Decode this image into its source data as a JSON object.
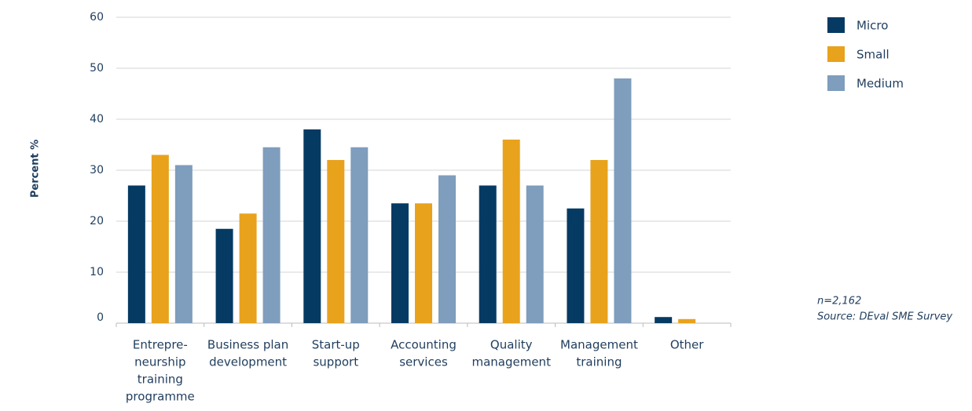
{
  "chart_data": {
    "type": "bar",
    "y_label": "Percent %",
    "categories": [
      [
        "Entrepre-",
        "neurship",
        "training",
        "programme"
      ],
      [
        "Business plan",
        "development"
      ],
      [
        "Start-up",
        "support"
      ],
      [
        "Accounting",
        "services"
      ],
      [
        "Quality",
        "management"
      ],
      [
        "Management",
        "training"
      ],
      [
        "Other"
      ]
    ],
    "series": [
      {
        "name": "Micro",
        "color": "#053a63",
        "values": [
          27,
          18.5,
          38,
          23.5,
          27,
          22.5,
          1.2
        ]
      },
      {
        "name": "Small",
        "color": "#e8a21c",
        "values": [
          33,
          21.5,
          32,
          23.5,
          36,
          32,
          0.8
        ]
      },
      {
        "name": "Medium",
        "color": "#7f9dbd",
        "values": [
          31,
          34.5,
          34.5,
          29,
          27,
          48,
          0
        ]
      }
    ],
    "ylim": [
      0,
      60
    ],
    "yticks": [
      0,
      10,
      20,
      30,
      40,
      50,
      60
    ],
    "grid": true,
    "legend": "top-right",
    "notes": [
      "n=2,162",
      "Source: DEval SME Survey"
    ]
  }
}
